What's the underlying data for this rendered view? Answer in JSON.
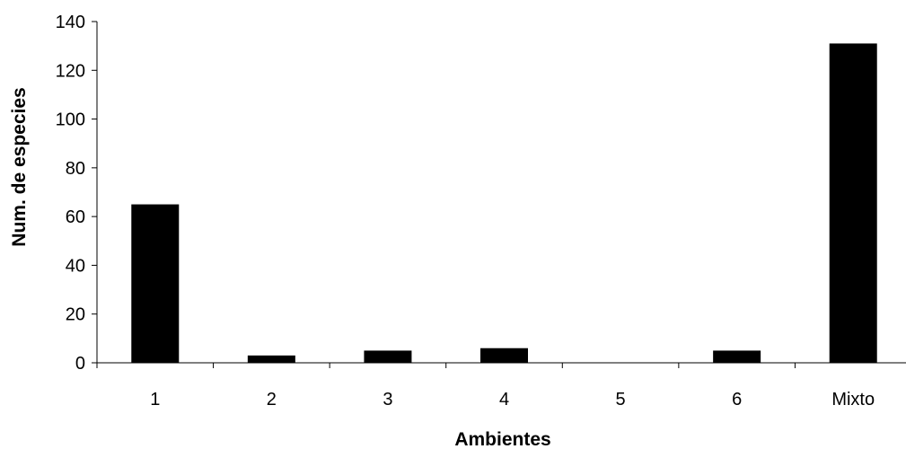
{
  "chart_data": {
    "type": "bar",
    "categories": [
      "1",
      "2",
      "3",
      "4",
      "5",
      "6",
      "Mixto"
    ],
    "values": [
      65,
      3,
      5,
      6,
      0,
      5,
      131
    ],
    "title": "",
    "xlabel": "Ambientes",
    "ylabel": "Num. de especies",
    "ylim": [
      0,
      140
    ],
    "yticks": [
      0,
      20,
      40,
      60,
      80,
      100,
      120,
      140
    ],
    "grid": false,
    "legend": "none",
    "bar_color": "#000000",
    "axis_color": "#000000"
  }
}
